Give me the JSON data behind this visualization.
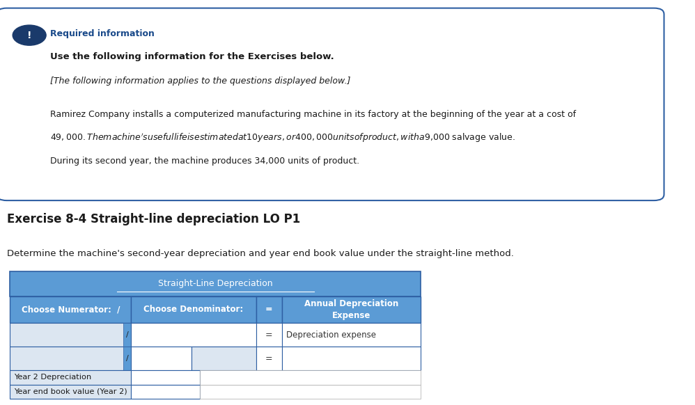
{
  "bg_color": "#ffffff",
  "box_border_color": "#2e5fa3",
  "box_bg_color": "#ffffff",
  "required_info_color": "#1a4a8a",
  "required_info_text": "Required information",
  "bold_line": "Use the following information for the Exercises below.",
  "italic_line": "[The following information applies to the questions displayed below.]",
  "body_line1": "Ramirez Company installs a computerized manufacturing machine in its factory at the beginning of the year at a cost of",
  "body_line2": "$49,000. The machine's useful life is estimated at 10 years, or 400,000 units of product, with a $9,000 salvage value.",
  "body_line3": "During its second year, the machine produces 34,000 units of product.",
  "exercise_heading": "Exercise 8-4 Straight-line depreciation LO P1",
  "determine_text": "Determine the machine's second-year depreciation and year end book value under the straight-line method.",
  "table_header": "Straight-Line Depreciation",
  "col1_header": "Choose Numerator:  /",
  "col2_header": "Choose Denominator:",
  "col3_header": "=",
  "col4_header": "Annual Depreciation\nExpense",
  "row1_col4": "Depreciation expense",
  "row3_label": "Year 2 Depreciation",
  "row4_label": "Year end book value (Year 2)",
  "header_bg": "#5b9bd5",
  "header_text_color": "#ffffff",
  "row_bg_light": "#dce6f1",
  "row_bg_white": "#ffffff",
  "table_border": "#2e5fa3",
  "icon_bg": "#1a3a6b",
  "icon_text": "!",
  "icon_color": "#ffffff"
}
